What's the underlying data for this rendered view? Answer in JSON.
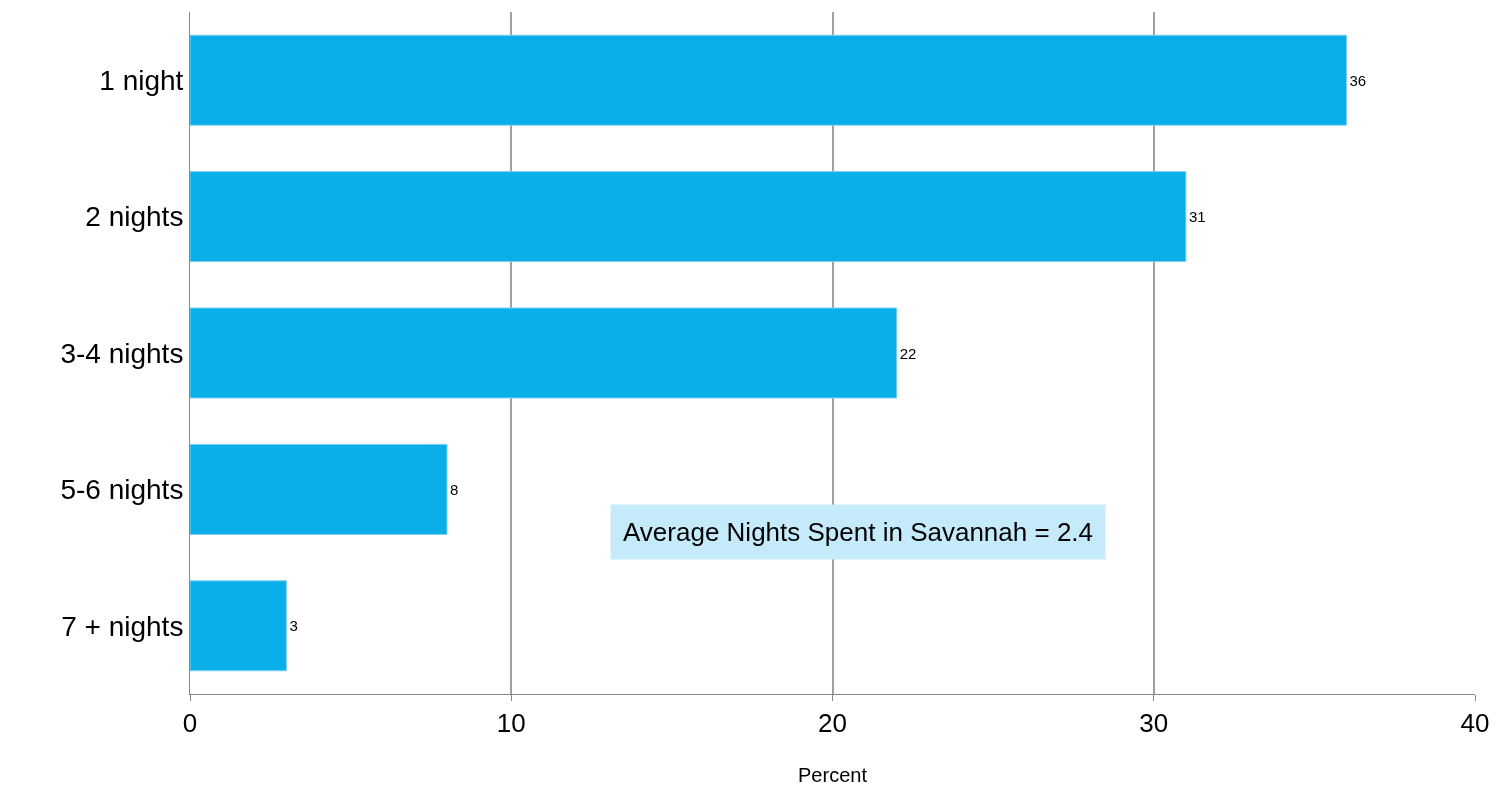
{
  "chart_data": {
    "type": "bar",
    "orientation": "horizontal",
    "xlabel": "Percent",
    "categories": [
      "1 night",
      "2 nights",
      "3-4 nights",
      "5-6 nights",
      "7 + nights"
    ],
    "values": [
      36,
      31,
      22,
      8,
      3
    ],
    "color": "#0aaee8",
    "xlim": [
      0,
      40
    ],
    "xticks": [
      0,
      10,
      20,
      30,
      40
    ],
    "grid": "x",
    "legend": false,
    "data_labels": true,
    "annotations": [
      "Average Nights Spent in Savannah = 2.4"
    ]
  }
}
